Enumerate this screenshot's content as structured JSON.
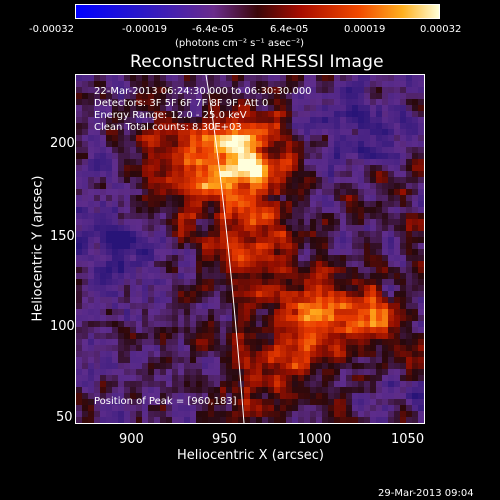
{
  "colorbar": {
    "ticks": [
      "-0.00032",
      "-0.00019",
      "-6.4e-05",
      "6.4e-05",
      "0.00019",
      "0.00032"
    ],
    "unit_label": "(photons cm⁻² s⁻¹ asec⁻²)"
  },
  "plot": {
    "title": "Reconstructed RHESSI Image",
    "annotations": {
      "time": "22-Mar-2013 06:24:30.000 to 06:30:30.000",
      "detectors": "Detectors: 3F 5F 6F 7F 8F 9F, Att 0",
      "energy": "Energy Range: 12.0 - 25.0 keV",
      "clean": "Clean     Total counts: 8.30E+03",
      "peak": "Position of Peak = [960,183]"
    },
    "x_axis": {
      "label": "Heliocentric X (arcsec)",
      "ticks": [
        "900",
        "950",
        "1000",
        "1050"
      ]
    },
    "y_axis": {
      "label": "Heliocentric Y (arcsec)",
      "ticks": [
        "200",
        "150",
        "100",
        "50"
      ]
    }
  },
  "footer": {
    "timestamp": "29-Mar-2013 09:04"
  },
  "colors": {
    "background": "#000000",
    "limb": "#ffffff"
  }
}
